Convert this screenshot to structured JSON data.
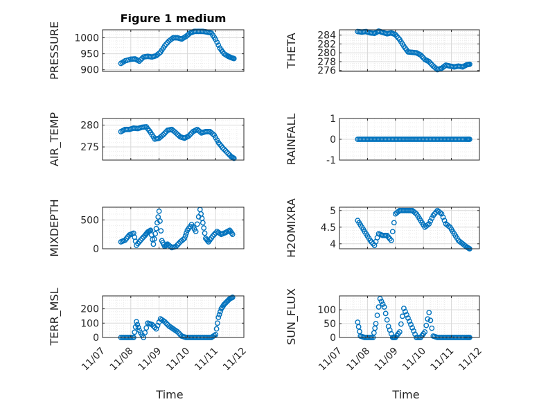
{
  "figure_title": "Figure 1 medium",
  "accent_color": "#0072BD",
  "chart_data": [
    {
      "type": "scatter",
      "ylabel": "PRESSURE",
      "title": "Figure 1 medium",
      "yticks": [
        900,
        950,
        1000
      ],
      "ylim": [
        895,
        1025
      ],
      "xtick_labels_visible": false,
      "x": [
        7.65,
        7.8,
        8.0,
        8.15,
        8.3,
        8.45,
        8.6,
        8.75,
        8.9,
        9.05,
        9.2,
        9.35,
        9.5,
        9.65,
        9.8,
        9.95,
        10.1,
        10.25,
        10.4,
        10.55,
        10.7,
        10.85,
        11.0,
        11.15,
        11.3,
        11.45,
        11.55,
        11.65
      ],
      "y": [
        920,
        928,
        933,
        934,
        927,
        940,
        942,
        940,
        944,
        955,
        975,
        990,
        1000,
        1000,
        996,
        1004,
        1015,
        1020,
        1020,
        1020,
        1018,
        1015,
        995,
        968,
        950,
        942,
        938,
        935
      ]
    },
    {
      "type": "scatter",
      "ylabel": "THETA",
      "yticks": [
        276,
        278,
        280,
        282,
        284
      ],
      "ylim": [
        275.8,
        285.2
      ],
      "xtick_labels_visible": false,
      "x": [
        7.65,
        7.8,
        7.95,
        8.1,
        8.25,
        8.4,
        8.55,
        8.7,
        8.85,
        9.0,
        9.15,
        9.3,
        9.45,
        9.6,
        9.75,
        9.9,
        10.05,
        10.2,
        10.35,
        10.5,
        10.65,
        10.8,
        10.95,
        11.1,
        11.25,
        11.4,
        11.55,
        11.65
      ],
      "y": [
        284.8,
        284.7,
        284.8,
        284.5,
        284.4,
        284.9,
        284.6,
        284.3,
        284.5,
        284.1,
        283.0,
        281.5,
        280.2,
        280.1,
        280.0,
        279.5,
        278.5,
        278.0,
        277.0,
        276.2,
        276.5,
        277.2,
        277.0,
        276.8,
        277.0,
        276.8,
        277.3,
        277.4
      ]
    },
    {
      "type": "scatter",
      "ylabel": "AIR_TEMP",
      "yticks": [
        275,
        280
      ],
      "ylim": [
        272,
        281.5
      ],
      "xtick_labels_visible": false,
      "x": [
        7.65,
        7.8,
        7.95,
        8.1,
        8.25,
        8.4,
        8.55,
        8.7,
        8.85,
        9.0,
        9.15,
        9.3,
        9.45,
        9.6,
        9.75,
        9.9,
        10.05,
        10.2,
        10.35,
        10.5,
        10.65,
        10.8,
        10.95,
        11.1,
        11.25,
        11.4,
        11.55,
        11.65
      ],
      "y": [
        278.5,
        279.0,
        279.0,
        279.3,
        279.2,
        279.5,
        279.6,
        278.3,
        276.8,
        277.0,
        277.8,
        278.8,
        279.0,
        278.2,
        277.3,
        277.0,
        277.5,
        278.5,
        279.0,
        278.2,
        278.5,
        278.5,
        277.7,
        276.0,
        274.8,
        273.8,
        272.8,
        272.4
      ]
    },
    {
      "type": "scatter",
      "ylabel": "RAINFALL",
      "yticks": [
        -1,
        0,
        1
      ],
      "ylim": [
        -1,
        1
      ],
      "xtick_labels_visible": false,
      "x": [
        7.65,
        7.8,
        7.95,
        8.1,
        8.25,
        8.4,
        8.55,
        8.7,
        8.85,
        9.0,
        9.15,
        9.3,
        9.45,
        9.6,
        9.75,
        9.9,
        10.05,
        10.2,
        10.35,
        10.5,
        10.65,
        10.8,
        10.95,
        11.1,
        11.25,
        11.4,
        11.55,
        11.65
      ],
      "y": [
        0,
        0,
        0,
        0,
        0,
        0,
        0,
        0,
        0,
        0,
        0,
        0,
        0,
        0,
        0,
        0,
        0,
        0,
        0,
        0,
        0,
        0,
        0,
        0,
        0,
        0,
        0,
        0
      ]
    },
    {
      "type": "scatter",
      "ylabel": "MIXDEPTH",
      "yticks": [
        0,
        500
      ],
      "ylim": [
        0,
        720
      ],
      "xtick_labels_visible": false,
      "x": [
        7.65,
        7.8,
        7.95,
        8.1,
        8.2,
        8.35,
        8.5,
        8.6,
        8.7,
        8.8,
        8.9,
        9.0,
        9.1,
        9.2,
        9.3,
        9.45,
        9.6,
        9.75,
        9.9,
        10.0,
        10.15,
        10.3,
        10.45,
        10.55,
        10.65,
        10.75,
        10.9,
        11.05,
        11.2,
        11.35,
        11.5,
        11.6
      ],
      "y": [
        120,
        150,
        240,
        270,
        60,
        150,
        230,
        290,
        320,
        80,
        350,
        650,
        140,
        40,
        80,
        20,
        40,
        120,
        180,
        320,
        420,
        300,
        680,
        450,
        180,
        120,
        220,
        300,
        250,
        280,
        320,
        250
      ]
    },
    {
      "type": "scatter",
      "ylabel": "H2OMIXRA",
      "yticks": [
        4,
        4.5,
        5
      ],
      "ylim": [
        3.85,
        5.1
      ],
      "xtick_labels_visible": false,
      "x": [
        7.65,
        7.8,
        7.95,
        8.1,
        8.25,
        8.4,
        8.55,
        8.7,
        8.85,
        9.0,
        9.15,
        9.3,
        9.45,
        9.6,
        9.75,
        9.9,
        10.05,
        10.2,
        10.35,
        10.5,
        10.65,
        10.8,
        10.95,
        11.1,
        11.25,
        11.4,
        11.55,
        11.65
      ],
      "y": [
        4.7,
        4.5,
        4.3,
        4.1,
        3.95,
        4.3,
        4.25,
        4.25,
        4.1,
        4.9,
        5.0,
        5.0,
        5.0,
        5.0,
        4.9,
        4.7,
        4.5,
        4.6,
        4.85,
        5.0,
        4.9,
        4.6,
        4.5,
        4.3,
        4.1,
        4.0,
        3.9,
        3.85
      ]
    },
    {
      "type": "scatter",
      "ylabel": "TERR_MSL",
      "yticks": [
        0,
        100,
        200
      ],
      "ylim": [
        0,
        290
      ],
      "xtick_labels": [
        "11/07",
        "11/08",
        "11/09",
        "11/10",
        "11/11",
        "11/12"
      ],
      "xtick_labels_visible": true,
      "xlabel": "Time",
      "x": [
        7.65,
        7.8,
        7.95,
        8.1,
        8.2,
        8.3,
        8.45,
        8.6,
        8.75,
        8.9,
        9.05,
        9.2,
        9.35,
        9.5,
        9.65,
        9.8,
        9.95,
        10.1,
        10.25,
        10.4,
        10.55,
        10.7,
        10.85,
        11.0,
        11.1,
        11.2,
        11.3,
        11.4,
        11.5,
        11.6
      ],
      "y": [
        0,
        0,
        0,
        0,
        110,
        50,
        0,
        100,
        90,
        60,
        130,
        110,
        80,
        60,
        40,
        10,
        0,
        0,
        0,
        0,
        0,
        0,
        0,
        20,
        140,
        200,
        230,
        250,
        270,
        280
      ]
    },
    {
      "type": "scatter",
      "ylabel": "SUN_FLUX",
      "yticks": [
        0,
        50,
        100
      ],
      "ylim": [
        0,
        150
      ],
      "xtick_labels": [
        "11/07",
        "11/08",
        "11/09",
        "11/10",
        "11/11",
        "11/12"
      ],
      "xtick_labels_visible": true,
      "xlabel": "Time",
      "x": [
        7.65,
        7.75,
        7.9,
        8.05,
        8.2,
        8.3,
        8.45,
        8.6,
        8.75,
        8.9,
        9.0,
        9.15,
        9.3,
        9.45,
        9.6,
        9.75,
        9.9,
        10.05,
        10.2,
        10.35,
        10.5,
        10.65,
        10.8,
        10.95,
        11.1,
        11.25,
        11.4,
        11.55,
        11.65
      ],
      "y": [
        55,
        5,
        0,
        0,
        0,
        50,
        140,
        110,
        40,
        0,
        0,
        20,
        105,
        70,
        35,
        0,
        0,
        20,
        90,
        5,
        0,
        0,
        0,
        0,
        0,
        0,
        0,
        0,
        0
      ]
    }
  ]
}
